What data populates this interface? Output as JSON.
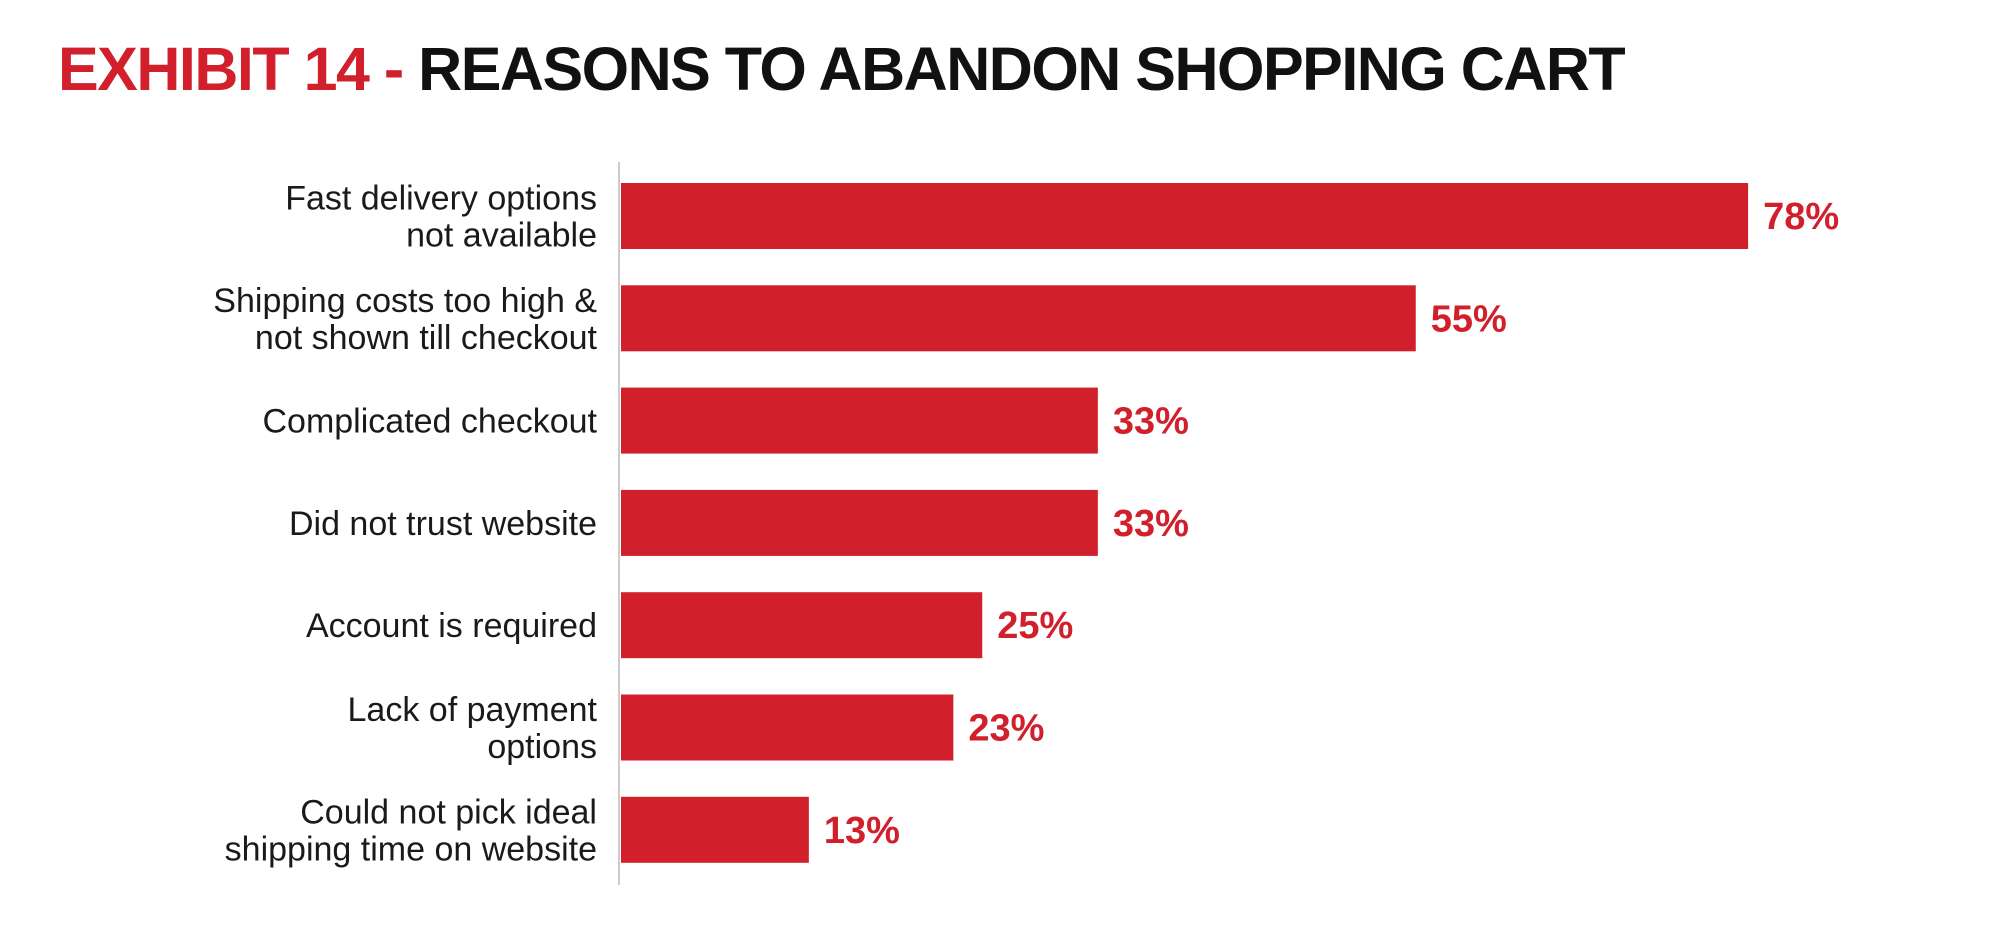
{
  "title": {
    "prefix": "EXHIBIT 14 -",
    "main": "REASONS TO ABANDON SHOPPING CART"
  },
  "colors": {
    "accent": "#d11f2b",
    "bar": "#d11f2b",
    "text": "#1a1a1a",
    "axis": "#cccccc"
  },
  "chart_data": {
    "type": "bar",
    "orientation": "horizontal",
    "categories": [
      [
        "Fast delivery options",
        "not available"
      ],
      [
        "Shipping costs too high &",
        "not shown till checkout"
      ],
      [
        "Complicated checkout"
      ],
      [
        "Did not trust website"
      ],
      [
        "Account is required"
      ],
      [
        "Lack of payment",
        "options"
      ],
      [
        "Could not pick ideal",
        "shipping time on website"
      ]
    ],
    "values": [
      78,
      55,
      33,
      33,
      25,
      23,
      13
    ],
    "value_labels": [
      "78%",
      "55%",
      "33%",
      "33%",
      "25%",
      "23%",
      "13%"
    ],
    "xlim": [
      0,
      100
    ],
    "grid": false,
    "legend": "none"
  }
}
